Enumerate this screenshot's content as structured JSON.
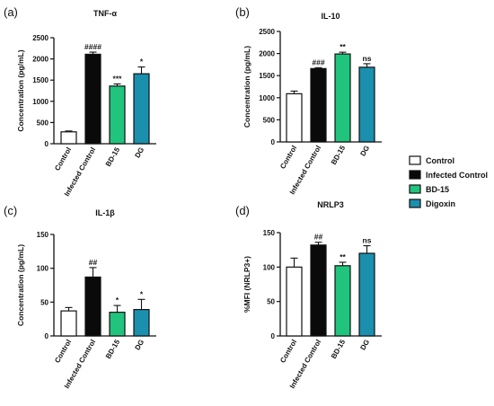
{
  "colors": {
    "control": "#ffffff",
    "infected": "#0a0a0a",
    "bd15": "#21c47d",
    "digoxin": "#1b8fae",
    "axis": "#111111"
  },
  "legend": {
    "items": [
      {
        "label": "Control",
        "color": "#ffffff"
      },
      {
        "label": "Infected Control",
        "color": "#0a0a0a"
      },
      {
        "label": "BD-15",
        "color": "#21c47d"
      },
      {
        "label": "Digoxin",
        "color": "#1b8fae"
      }
    ]
  },
  "chart_data": [
    {
      "panel": "(a)",
      "type": "bar",
      "title": "TNF-α",
      "ylabel": "Concentration (pg/mL)",
      "categories": [
        "Control",
        "Infected Control",
        "BD-15",
        "DG"
      ],
      "values": [
        280,
        2110,
        1360,
        1650
      ],
      "errors": [
        20,
        50,
        50,
        160
      ],
      "annotations": [
        "",
        "####",
        "***",
        "*"
      ],
      "ylim": [
        0,
        2500
      ],
      "yticks": [
        0,
        500,
        1000,
        1500,
        2000,
        2500
      ]
    },
    {
      "panel": "(b)",
      "type": "bar",
      "title": "IL-10",
      "ylabel": "Concentration (pg/mL)",
      "categories": [
        "Control",
        "Infected Control",
        "BD-15",
        "DG"
      ],
      "values": [
        1090,
        1660,
        1990,
        1690
      ],
      "errors": [
        60,
        20,
        40,
        80
      ],
      "annotations": [
        "",
        "###",
        "**",
        "ns"
      ],
      "ylim": [
        0,
        2500
      ],
      "yticks": [
        0,
        500,
        1000,
        1500,
        2000,
        2500
      ]
    },
    {
      "panel": "(c)",
      "type": "bar",
      "title": "IL-1β",
      "ylabel": "Concentration (pg/mL)",
      "categories": [
        "Control",
        "Infected Control",
        "BD-15",
        "DG"
      ],
      "values": [
        37,
        87,
        35,
        39
      ],
      "errors": [
        5,
        14,
        10,
        15
      ],
      "annotations": [
        "",
        "##",
        "*",
        "*"
      ],
      "ylim": [
        0,
        150
      ],
      "yticks": [
        0,
        50,
        100,
        150
      ]
    },
    {
      "panel": "(d)",
      "type": "bar",
      "title": "NRLP3",
      "ylabel": "%MFI (NRLP3+)",
      "categories": [
        "Control",
        "Infected Control",
        "BD-15",
        "DG"
      ],
      "values": [
        100,
        132,
        102,
        120
      ],
      "errors": [
        13,
        4,
        5,
        11
      ],
      "annotations": [
        "",
        "##",
        "**",
        "ns"
      ],
      "ylim": [
        0,
        150
      ],
      "yticks": [
        0,
        50,
        100,
        150
      ]
    }
  ]
}
